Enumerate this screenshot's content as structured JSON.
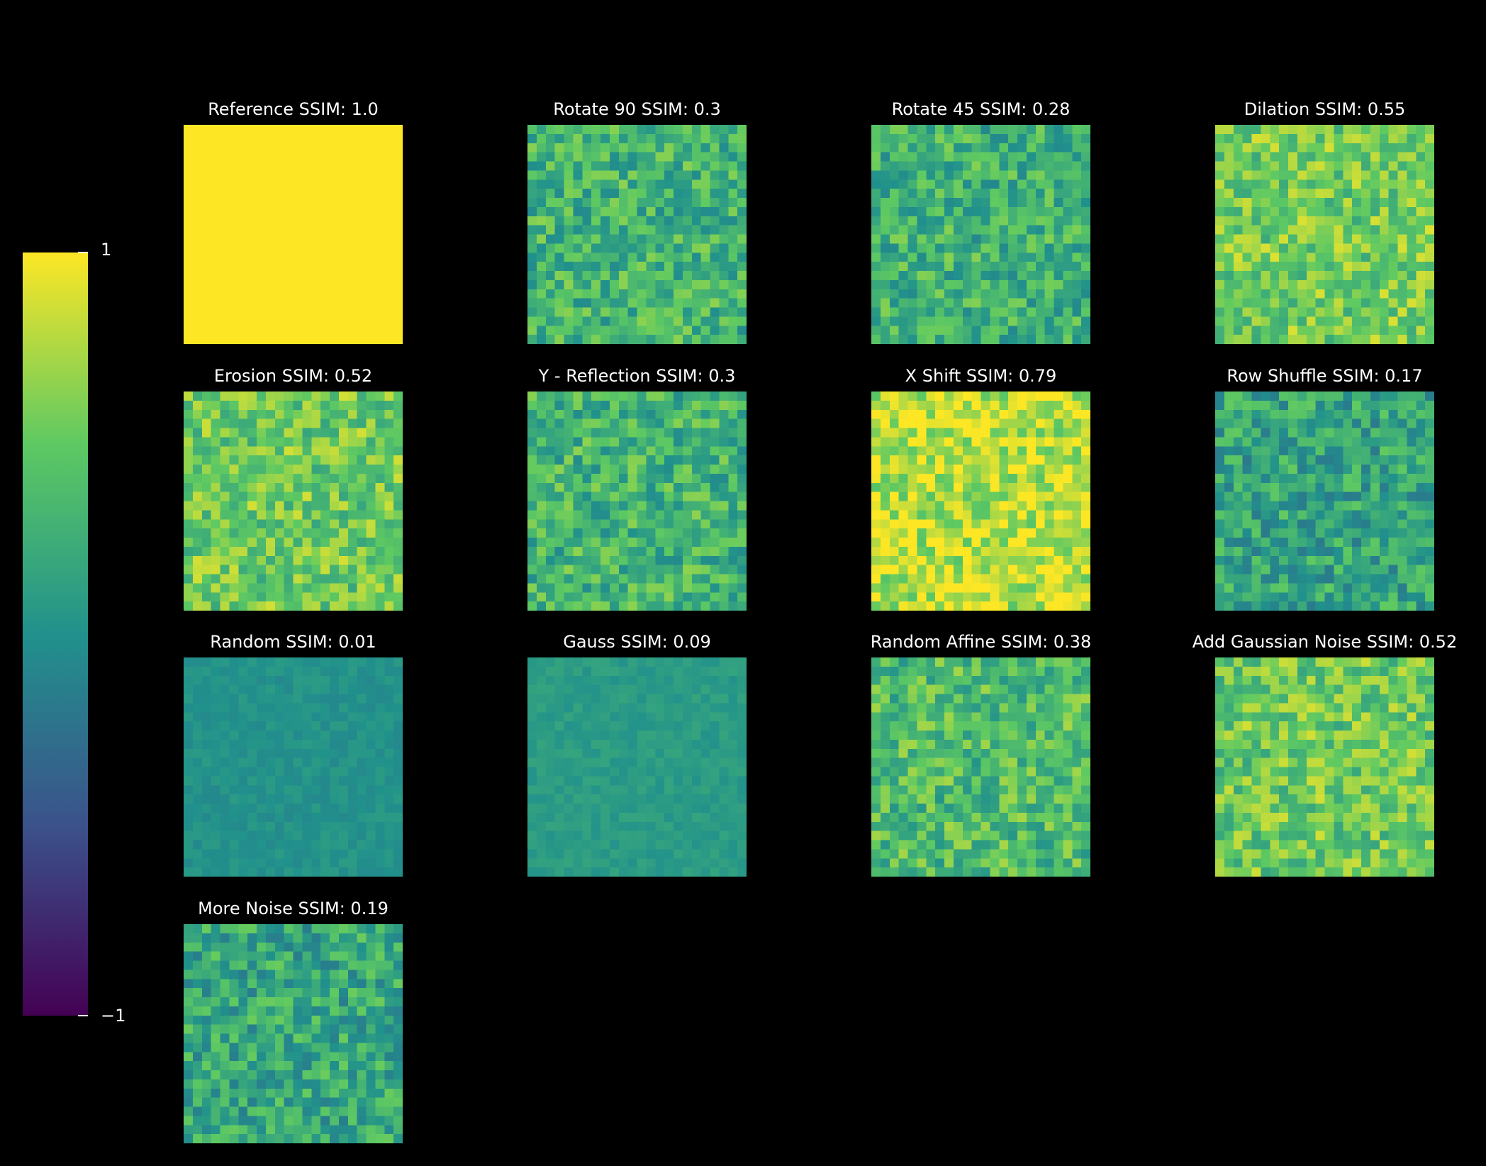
{
  "chart_data": {
    "type": "heatmap",
    "title": "",
    "colormap": "viridis",
    "colorbar": {
      "vmin": -1,
      "vmax": 1,
      "tick_labels": [
        "1",
        "−1"
      ],
      "colors": [
        "#440154",
        "#3b528b",
        "#21918c",
        "#5ec962",
        "#fde725"
      ]
    },
    "panels": [
      {
        "name": "Reference",
        "label": "Reference  SSIM: 1.0",
        "ssim": 1.0
      },
      {
        "name": "Rotate 90",
        "label": "Rotate 90  SSIM: 0.3",
        "ssim": 0.3
      },
      {
        "name": "Rotate 45",
        "label": "Rotate 45  SSIM: 0.28",
        "ssim": 0.28
      },
      {
        "name": "Dilation",
        "label": "Dilation  SSIM: 0.55",
        "ssim": 0.55
      },
      {
        "name": "Erosion",
        "label": "Erosion  SSIM: 0.52",
        "ssim": 0.52
      },
      {
        "name": "Y - Reflection",
        "label": "Y - Reflection  SSIM: 0.3",
        "ssim": 0.3
      },
      {
        "name": "X Shift",
        "label": "X Shift  SSIM: 0.79",
        "ssim": 0.79
      },
      {
        "name": "Row Shuffle",
        "label": "Row Shuffle  SSIM: 0.17",
        "ssim": 0.17
      },
      {
        "name": "Random",
        "label": "Random  SSIM: 0.01",
        "ssim": 0.01
      },
      {
        "name": "Gauss",
        "label": "Gauss  SSIM: 0.09",
        "ssim": 0.09
      },
      {
        "name": "Random Affine",
        "label": "Random Affine  SSIM: 0.38",
        "ssim": 0.38
      },
      {
        "name": "Add Gaussian Noise",
        "label": "Add Gaussian Noise  SSIM: 0.52",
        "ssim": 0.52
      },
      {
        "name": "More Noise",
        "label": "More Noise  SSIM: 0.19",
        "ssim": 0.19
      }
    ]
  }
}
